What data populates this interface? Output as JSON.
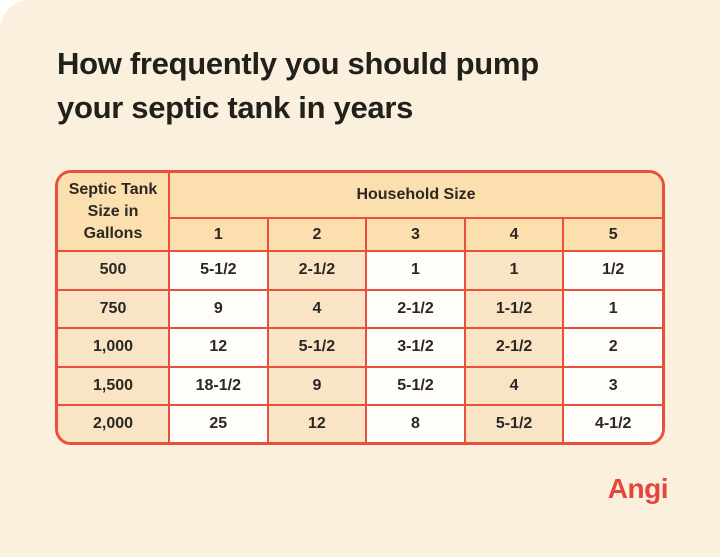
{
  "page": {
    "background_color": "#FBF0DD",
    "corner_color": "#FFFFFF"
  },
  "title_lines": {
    "line1": "How frequently you should pump",
    "line2": "your septic tank in years"
  },
  "table": {
    "corner_header": "Septic Tank Size in Gallons",
    "group_header": "Household Size",
    "household_sizes": [
      "1",
      "2",
      "3",
      "4",
      "5"
    ],
    "rows": [
      {
        "gallons": "500",
        "values": [
          "5-1/2",
          "2-1/2",
          "1",
          "1",
          "1/2"
        ]
      },
      {
        "gallons": "750",
        "values": [
          "9",
          "4",
          "2-1/2",
          "1-1/2",
          "1"
        ]
      },
      {
        "gallons": "1,000",
        "values": [
          "12",
          "5-1/2",
          "3-1/2",
          "2-1/2",
          "2"
        ]
      },
      {
        "gallons": "1,500",
        "values": [
          "18-1/2",
          "9",
          "5-1/2",
          "4",
          "3"
        ]
      },
      {
        "gallons": "2,000",
        "values": [
          "25",
          "12",
          "8",
          "5-1/2",
          "4-1/2"
        ]
      }
    ]
  },
  "brand": {
    "logo_text": "Angi",
    "color": "#E5463C"
  },
  "colors": {
    "border_red": "#E8503C",
    "header_peach": "#FBDFAE",
    "stripe_peach": "#F9E5C6",
    "cell_white": "#FEFDFA",
    "title_text": "#21201B"
  },
  "chart_data": {
    "type": "table",
    "title": "How frequently you should pump your septic tank in years",
    "row_header": "Septic Tank Size in Gallons",
    "column_group": "Household Size",
    "columns": [
      "1",
      "2",
      "3",
      "4",
      "5"
    ],
    "rows": [
      {
        "septic_tank_size_gallons": "500",
        "pump_frequency_years_by_household_size": [
          "5-1/2",
          "2-1/2",
          "1",
          "1",
          "1/2"
        ]
      },
      {
        "septic_tank_size_gallons": "750",
        "pump_frequency_years_by_household_size": [
          "9",
          "4",
          "2-1/2",
          "1-1/2",
          "1"
        ]
      },
      {
        "septic_tank_size_gallons": "1,000",
        "pump_frequency_years_by_household_size": [
          "12",
          "5-1/2",
          "3-1/2",
          "2-1/2",
          "2"
        ]
      },
      {
        "septic_tank_size_gallons": "1,500",
        "pump_frequency_years_by_household_size": [
          "18-1/2",
          "9",
          "5-1/2",
          "4",
          "3"
        ]
      },
      {
        "septic_tank_size_gallons": "2,000",
        "pump_frequency_years_by_household_size": [
          "25",
          "12",
          "8",
          "5-1/2",
          "4-1/2"
        ]
      }
    ]
  }
}
